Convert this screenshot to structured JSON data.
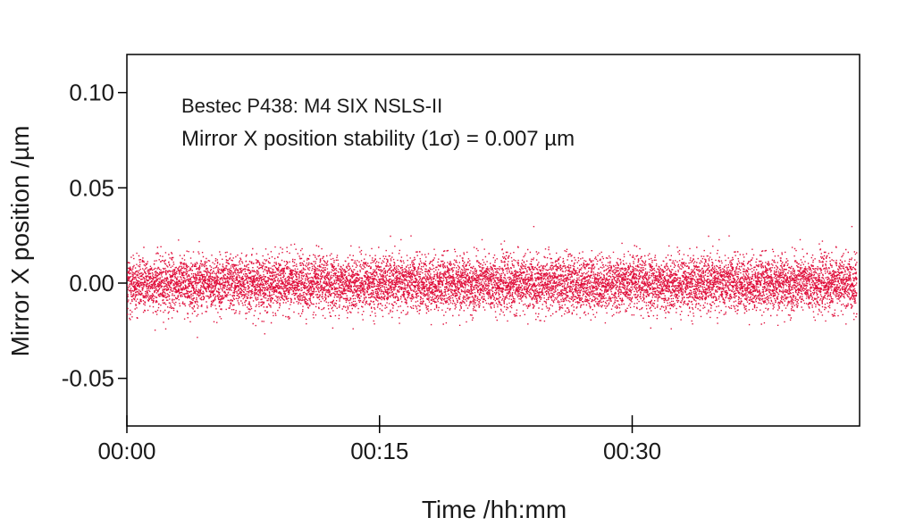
{
  "chart_data": {
    "type": "scatter",
    "title": "",
    "xlabel": "Time /hh:mm",
    "ylabel": "Mirror X position /µm",
    "x_unit": "minutes",
    "xlim": [
      0,
      43.5
    ],
    "ylim": [
      -0.075,
      0.12
    ],
    "x_ticks": [
      {
        "value": 0,
        "label": "00:00"
      },
      {
        "value": 15,
        "label": "00:15"
      },
      {
        "value": 30,
        "label": "00:30"
      }
    ],
    "y_ticks": [
      {
        "value": 0.1,
        "label": "0.10"
      },
      {
        "value": 0.05,
        "label": "0.05"
      },
      {
        "value": 0.0,
        "label": "0.00"
      },
      {
        "value": -0.05,
        "label": "-0.05"
      }
    ],
    "annotations": [
      "Bestec P438: M4 SIX NSLS-II",
      "Mirror X position stability (1σ) = 0.007 µm"
    ],
    "grid": false,
    "legend": "none",
    "point_color": "#e0103c",
    "series": [
      {
        "x_range": [
          0,
          43.3
        ],
        "mean": 0.0,
        "std_dev": 0.007,
        "num_points": 12000
      }
    ]
  }
}
